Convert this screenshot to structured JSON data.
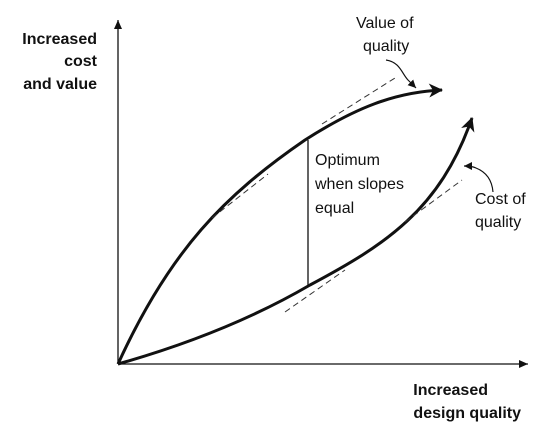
{
  "axes": {
    "y_label_lines": [
      "Increased",
      "cost",
      "and value"
    ],
    "x_label_lines": [
      "Increased",
      "design quality"
    ]
  },
  "annotations": {
    "value_curve_lines": [
      "Value of",
      "quality"
    ],
    "cost_curve_lines": [
      "Cost of",
      "quality"
    ],
    "optimum_lines": [
      "Optimum",
      "when slopes",
      "equal"
    ]
  },
  "colors": {
    "ink": "#111111",
    "background": "#ffffff"
  }
}
